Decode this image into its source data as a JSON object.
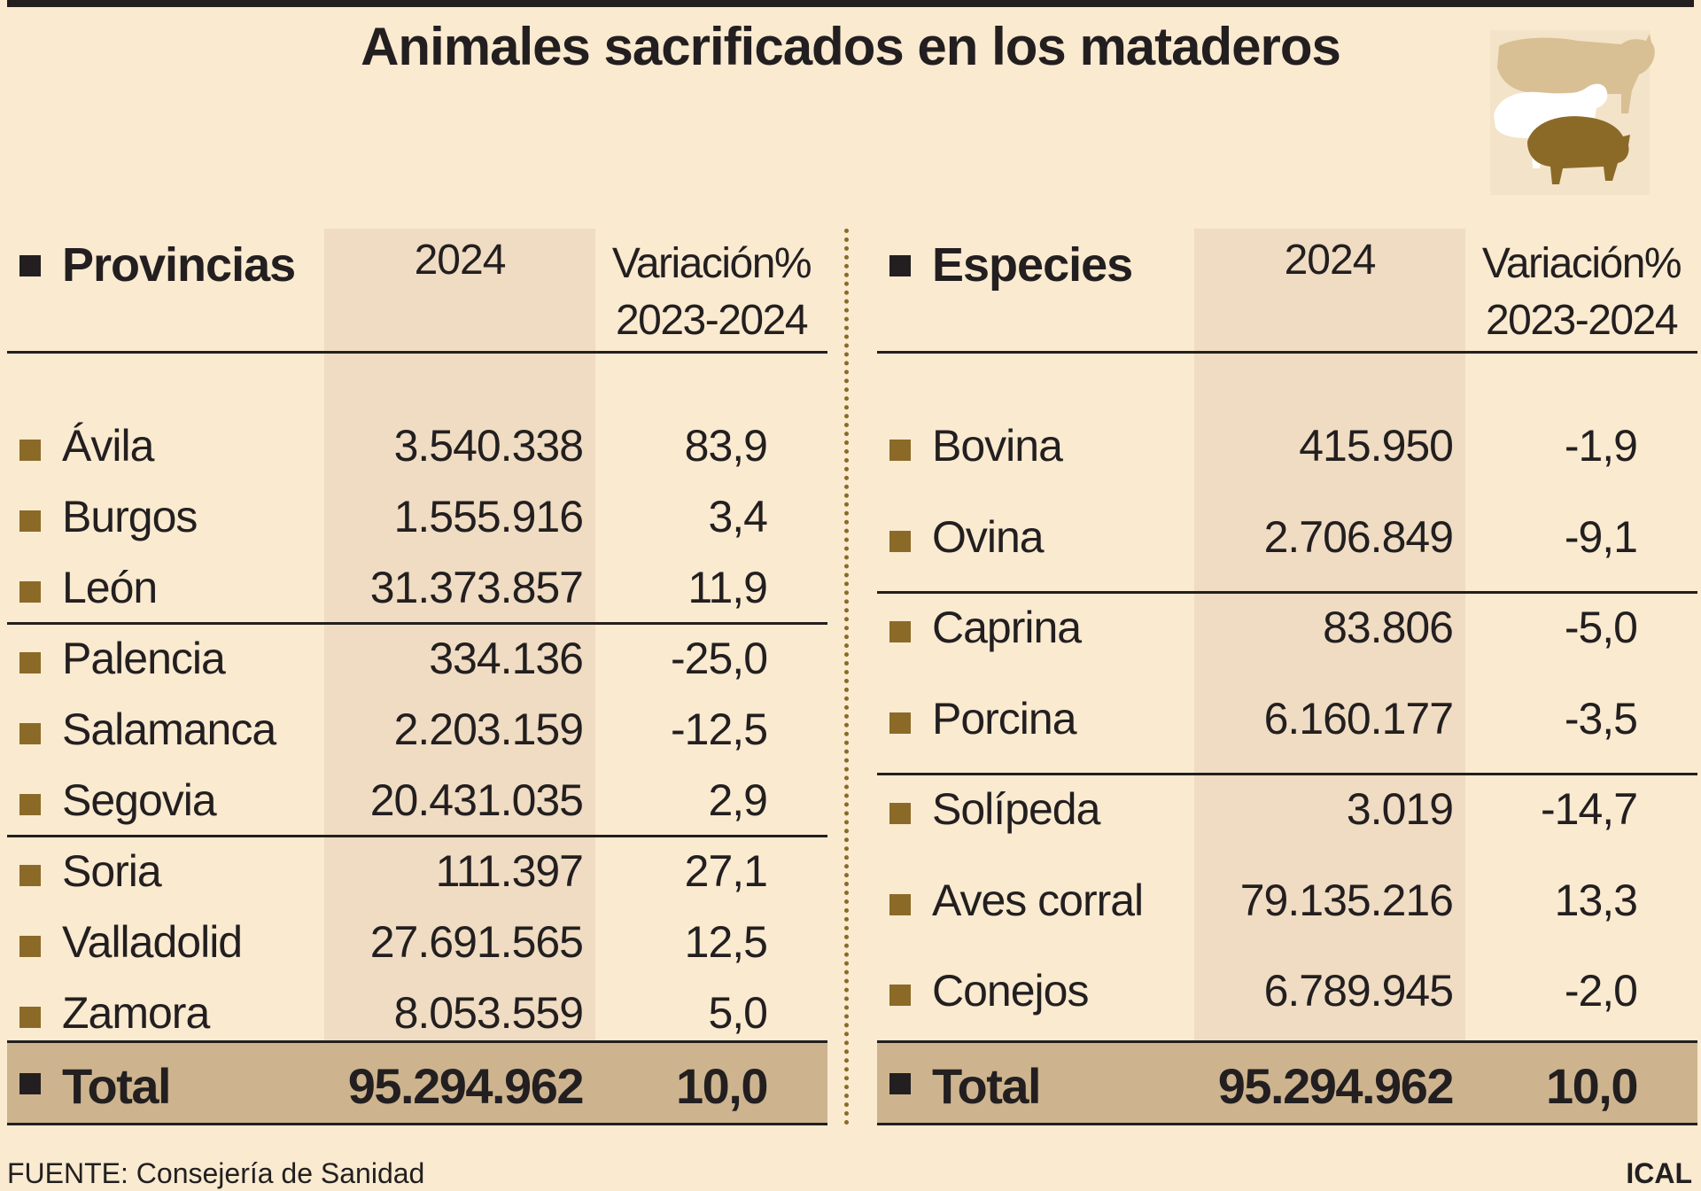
{
  "title": "Animales sacrificados en los mataderos",
  "colors": {
    "background": "#f9ead0",
    "column_shade": "#efdcc2",
    "total_band": "#cdb48e",
    "bullet": "#8b6a28"
  },
  "illustration": {
    "icon": "livestock-icon"
  },
  "chart_data": [
    {
      "type": "table",
      "columns": [
        "Provincias",
        "2024",
        "Variación%\n2023-2024"
      ],
      "header": {
        "label": "Provincias",
        "year": "2024",
        "var_line1": "Variación%",
        "var_line2": "2023-2024"
      },
      "rows": [
        {
          "name": "Ávila",
          "value": "3.540.338",
          "var": "83,9"
        },
        {
          "name": "Burgos",
          "value": "1.555.916",
          "var": "3,4"
        },
        {
          "name": "León",
          "value": "31.373.857",
          "var": "11,9"
        },
        {
          "name": "Palencia",
          "value": "334.136",
          "var": "-25,0"
        },
        {
          "name": "Salamanca",
          "value": "2.203.159",
          "var": "-12,5"
        },
        {
          "name": "Segovia",
          "value": "20.431.035",
          "var": "2,9"
        },
        {
          "name": "Soria",
          "value": "111.397",
          "var": "27,1"
        },
        {
          "name": "Valladolid",
          "value": "27.691.565",
          "var": "12,5"
        },
        {
          "name": "Zamora",
          "value": "8.053.559",
          "var": "5,0"
        }
      ],
      "total": {
        "name": "Total",
        "value": "95.294.962",
        "var": "10,0"
      }
    },
    {
      "type": "table",
      "columns": [
        "Especies",
        "2024",
        "Variación%\n2023-2024"
      ],
      "header": {
        "label": "Especies",
        "year": "2024",
        "var_line1": "Variación%",
        "var_line2": "2023-2024"
      },
      "rows": [
        {
          "name": "Bovina",
          "value": "415.950",
          "var": "-1,9"
        },
        {
          "name": "Ovina",
          "value": "2.706.849",
          "var": "-9,1"
        },
        {
          "name": "Caprina",
          "value": "83.806",
          "var": "-5,0"
        },
        {
          "name": "Porcina",
          "value": "6.160.177",
          "var": "-3,5"
        },
        {
          "name": "Solípeda",
          "value": "3.019",
          "var": "-14,7"
        },
        {
          "name": "Aves corral",
          "value": "79.135.216",
          "var": "13,3"
        },
        {
          "name": "Conejos",
          "value": "6.789.945",
          "var": "-2,0"
        }
      ],
      "total": {
        "name": "Total",
        "value": "95.294.962",
        "var": "10,0"
      }
    }
  ],
  "footer": {
    "source": "FUENTE: Consejería de Sanidad",
    "credit": "ICAL"
  }
}
